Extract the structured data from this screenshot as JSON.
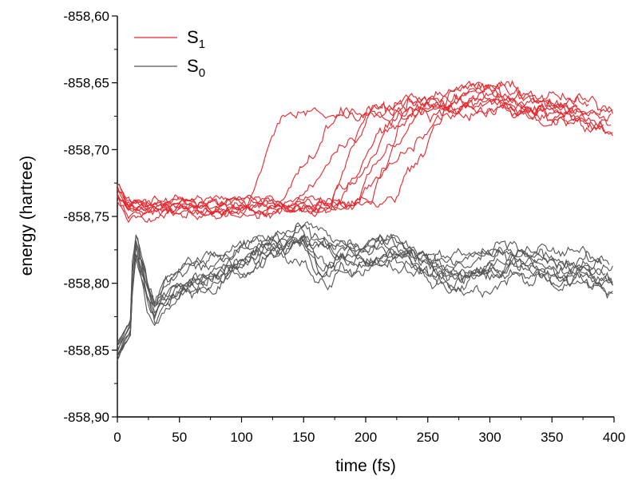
{
  "chart_data": {
    "type": "line",
    "title": "",
    "xlabel": "time (fs)",
    "ylabel": "energy (hartree)",
    "xlim": [
      0,
      400
    ],
    "ylim": [
      -858.9,
      -858.6
    ],
    "x_ticks": [
      0,
      50,
      100,
      150,
      200,
      250,
      300,
      350,
      400
    ],
    "x_tick_labels": [
      "0",
      "50",
      "100",
      "150",
      "200",
      "250",
      "300",
      "350",
      "400"
    ],
    "y_ticks": [
      -858.9,
      -858.85,
      -858.8,
      -858.75,
      -858.7,
      -858.65,
      -858.6
    ],
    "y_tick_labels": [
      "-858,90",
      "-858,85",
      "-858,80",
      "-858,75",
      "-858,70",
      "-858,65",
      "-858,60"
    ],
    "grid": false,
    "legend_position": "top-left",
    "series": [
      {
        "name": "S1",
        "label_main": "S",
        "label_sub": "1",
        "color": "#e8262c",
        "description": "approximately 10 trajectories; hop to the excited-state plateau at different times",
        "x": [
          0,
          5,
          10,
          20,
          40,
          60,
          80,
          100,
          110,
          120,
          130,
          140,
          150,
          160,
          170,
          180,
          190,
          200,
          210,
          220,
          230,
          240,
          250,
          260,
          270,
          280,
          300,
          320,
          340,
          360,
          380,
          400
        ],
        "values": [
          -858.728,
          -858.745,
          -858.744,
          -858.742,
          -858.742,
          -858.742,
          -858.743,
          -858.743,
          -858.743,
          -858.743,
          -858.743,
          -858.74,
          -858.735,
          -858.728,
          -858.716,
          -858.705,
          -858.695,
          -858.689,
          -858.684,
          -858.681,
          -858.674,
          -858.668,
          -858.666,
          -858.665,
          -858.664,
          -858.663,
          -858.661,
          -858.664,
          -858.668,
          -858.671,
          -858.675,
          -858.678
        ]
      },
      {
        "name": "S0",
        "label_main": "S",
        "label_sub": "0",
        "color": "#555555",
        "description": "approximately 10 trajectories in the ground state",
        "x": [
          0,
          5,
          10,
          15,
          20,
          25,
          30,
          40,
          50,
          60,
          80,
          100,
          120,
          140,
          150,
          160,
          170,
          180,
          200,
          220,
          240,
          260,
          280,
          300,
          320,
          340,
          360,
          380,
          400
        ],
        "values": [
          -858.855,
          -858.842,
          -858.815,
          -858.772,
          -858.79,
          -858.81,
          -858.82,
          -858.808,
          -858.8,
          -858.795,
          -858.79,
          -858.785,
          -858.776,
          -858.768,
          -858.765,
          -858.77,
          -858.775,
          -858.778,
          -858.78,
          -858.776,
          -858.782,
          -858.79,
          -858.792,
          -858.788,
          -858.783,
          -858.786,
          -858.79,
          -858.792,
          -858.795
        ]
      }
    ]
  }
}
